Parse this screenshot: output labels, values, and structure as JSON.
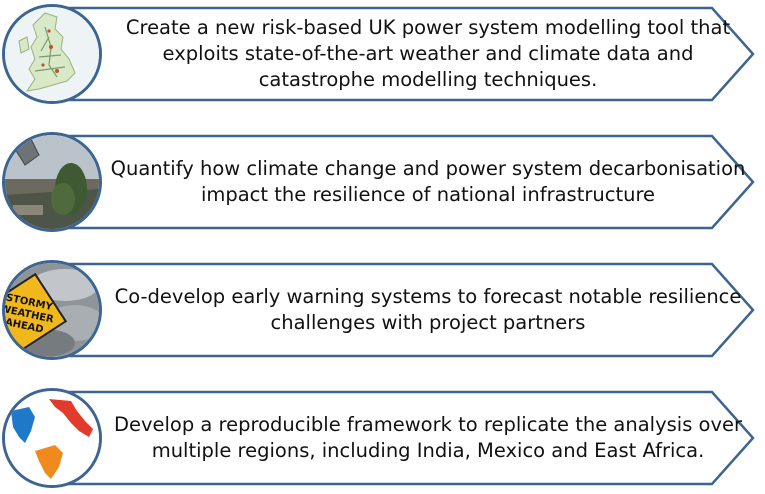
{
  "colors": {
    "border": "#3d6591",
    "text": "#111111"
  },
  "items": [
    {
      "icon": "uk-map-icon",
      "text": "Create a new risk-based UK power system modelling tool that exploits state-of-the-art weather and climate data and catastrophe modelling techniques."
    },
    {
      "icon": "storm-photo-icon",
      "text": "Quantify how climate change and power system decarbonisation impact the resilience of national infrastructure"
    },
    {
      "icon": "stormy-weather-sign-icon",
      "text": "Co-develop early warning systems to forecast notable resilience challenges with project partners"
    },
    {
      "icon": "world-regions-map-icon",
      "text": "Develop a reproducible framework to replicate the analysis over multiple regions, including India, Mexico and East Africa."
    }
  ],
  "sign_text": [
    "STORMY",
    "WEATHER",
    "AHEAD"
  ]
}
